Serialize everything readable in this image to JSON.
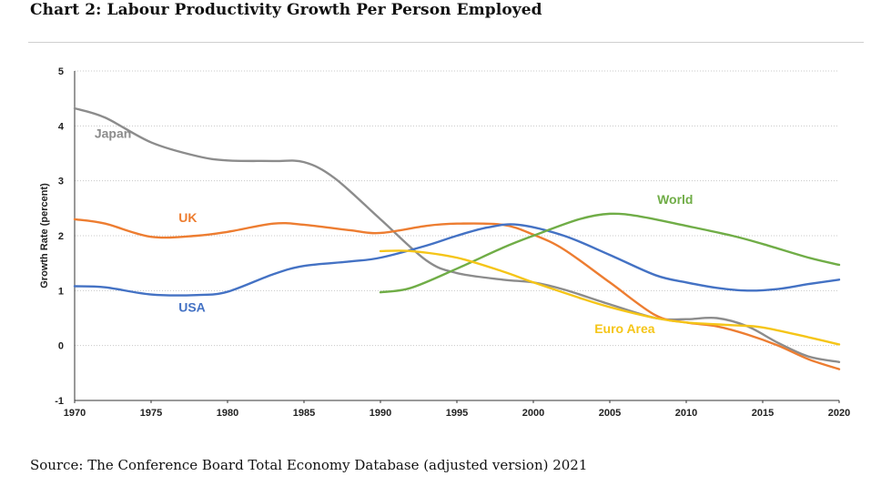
{
  "title": "Chart 2: Labour Productivity Growth Per Person Employed",
  "source": "Source: The Conference Board Total Economy Database (adjusted version) 2021",
  "chart_data": {
    "type": "line",
    "ylabel": "Growth Rate (percent)",
    "xlabel": "",
    "xlim": [
      1970,
      2020
    ],
    "ylim": [
      -1,
      5
    ],
    "xticks": [
      "1970",
      "1975",
      "1980",
      "1985",
      "1990",
      "1995",
      "2000",
      "2005",
      "2010",
      "2015",
      "2020"
    ],
    "yticks": [
      "-1",
      "0",
      "1",
      "2",
      "3",
      "4",
      "5"
    ],
    "grid": "horizontal dotted",
    "legend": "none (series labeled inline)",
    "series": [
      {
        "name": "Japan",
        "color": "#8c8c8c",
        "x": [
          1970,
          1972,
          1975,
          1978,
          1980,
          1983,
          1985,
          1987,
          1990,
          1993,
          1995,
          1998,
          2000,
          2002,
          2005,
          2008,
          2010,
          2012,
          2014,
          2016,
          2018,
          2020
        ],
        "y": [
          4.32,
          4.15,
          3.7,
          3.45,
          3.37,
          3.36,
          3.34,
          3.05,
          2.3,
          1.55,
          1.32,
          1.2,
          1.15,
          1.02,
          0.75,
          0.5,
          0.48,
          0.5,
          0.35,
          0.05,
          -0.2,
          -0.3
        ]
      },
      {
        "name": "UK",
        "color": "#ed7d31",
        "x": [
          1970,
          1972,
          1975,
          1978,
          1980,
          1983,
          1985,
          1988,
          1990,
          1993,
          1995,
          1998,
          2000,
          2002,
          2005,
          2008,
          2010,
          2012,
          2014,
          2016,
          2018,
          2020
        ],
        "y": [
          2.3,
          2.22,
          1.98,
          2.0,
          2.07,
          2.22,
          2.2,
          2.1,
          2.05,
          2.18,
          2.22,
          2.2,
          2.02,
          1.75,
          1.15,
          0.55,
          0.42,
          0.35,
          0.2,
          0.0,
          -0.25,
          -0.43
        ]
      },
      {
        "name": "USA",
        "color": "#4472c4",
        "x": [
          1970,
          1972,
          1975,
          1978,
          1980,
          1983,
          1985,
          1988,
          1990,
          1993,
          1995,
          1997,
          1999,
          2002,
          2005,
          2008,
          2010,
          2012,
          2014,
          2016,
          2018,
          2020
        ],
        "y": [
          1.08,
          1.06,
          0.93,
          0.92,
          0.98,
          1.3,
          1.45,
          1.53,
          1.6,
          1.82,
          2.0,
          2.15,
          2.2,
          2.0,
          1.65,
          1.28,
          1.15,
          1.05,
          1.0,
          1.03,
          1.12,
          1.2
        ]
      },
      {
        "name": "World",
        "color": "#70ad47",
        "x": [
          1990,
          1992,
          1995,
          1998,
          2000,
          2003,
          2005,
          2007,
          2010,
          2013,
          2015,
          2018,
          2020
        ],
        "y": [
          0.97,
          1.05,
          1.4,
          1.78,
          2.0,
          2.3,
          2.4,
          2.35,
          2.18,
          2.0,
          1.85,
          1.6,
          1.47
        ]
      },
      {
        "name": "Euro Area",
        "color": "#f5c518",
        "x": [
          1990,
          1992,
          1995,
          1998,
          2000,
          2003,
          2005,
          2008,
          2010,
          2013,
          2015,
          2018,
          2020
        ],
        "y": [
          1.72,
          1.72,
          1.6,
          1.35,
          1.15,
          0.87,
          0.7,
          0.5,
          0.42,
          0.37,
          0.33,
          0.15,
          0.02
        ]
      }
    ],
    "labels": [
      {
        "text": "Japan",
        "x": 1971.3,
        "y": 3.78,
        "series": "Japan"
      },
      {
        "text": "UK",
        "x": 1976.8,
        "y": 2.25,
        "series": "UK"
      },
      {
        "text": "USA",
        "x": 1976.8,
        "y": 0.62,
        "series": "USA"
      },
      {
        "text": "World",
        "x": 2008.1,
        "y": 2.58,
        "series": "World"
      },
      {
        "text": "Euro Area",
        "x": 2004.0,
        "y": 0.23,
        "series": "Euro Area"
      }
    ]
  }
}
